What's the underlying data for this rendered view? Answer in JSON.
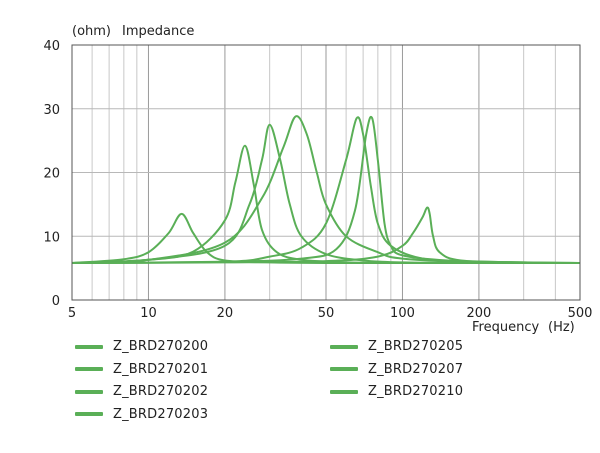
{
  "chart_data": {
    "type": "line",
    "title": "Impedance",
    "y_unit": "(ohm)",
    "xlabel": "Frequency",
    "x_unit": "(Hz)",
    "x_scale": "log",
    "xlim": [
      5,
      500
    ],
    "ylim": [
      0,
      40
    ],
    "x_ticks": [
      5,
      10,
      20,
      50,
      100,
      200,
      500
    ],
    "x_tick_labels": [
      "5",
      "10",
      "20",
      "50",
      "100",
      "200",
      "500"
    ],
    "y_ticks": [
      0,
      10,
      20,
      30,
      40
    ],
    "y_tick_labels": [
      "0",
      "10",
      "20",
      "30",
      "40"
    ],
    "grid": true,
    "legend_position": "bottom",
    "line_color": "#5aaf57",
    "series": [
      {
        "name": "Z_BRD270200",
        "x": [
          5,
          8,
          10,
          12,
          13.5,
          15,
          17,
          20,
          30,
          50,
          100,
          200,
          500
        ],
        "y": [
          5.8,
          6.4,
          7.5,
          10.5,
          13.5,
          10.5,
          7.5,
          6.2,
          5.9,
          5.8,
          5.8,
          5.8,
          5.8
        ]
      },
      {
        "name": "Z_BRD270201",
        "x": [
          5,
          10,
          15,
          20,
          22,
          24,
          26,
          28,
          32,
          40,
          60,
          100,
          200,
          500
        ],
        "y": [
          5.8,
          6.3,
          7.6,
          12.5,
          18.5,
          24.2,
          18,
          11,
          7.5,
          6.3,
          5.9,
          5.8,
          5.8,
          5.8
        ]
      },
      {
        "name": "Z_BRD270202",
        "x": [
          5,
          10,
          20,
          25,
          28,
          30,
          33,
          36,
          40,
          50,
          70,
          100,
          200,
          500
        ],
        "y": [
          5.8,
          6.3,
          8.5,
          15,
          22,
          27.5,
          22,
          15,
          10,
          7.2,
          6.2,
          5.9,
          5.8,
          5.8
        ]
      },
      {
        "name": "Z_BRD270203",
        "x": [
          5,
          10,
          20,
          28,
          34,
          38,
          42,
          46,
          50,
          60,
          80,
          100,
          200,
          500
        ],
        "y": [
          5.8,
          6.3,
          9,
          16,
          24,
          28.8,
          26,
          20,
          15,
          10,
          7.5,
          6.5,
          5.9,
          5.8
        ]
      },
      {
        "name": "Z_BRD270205",
        "x": [
          5,
          20,
          30,
          40,
          50,
          60,
          66,
          70,
          75,
          80,
          90,
          120,
          200,
          500
        ],
        "y": [
          5.8,
          6,
          6.8,
          8.2,
          12,
          22,
          28.5,
          26,
          18,
          12,
          8.5,
          6.5,
          5.9,
          5.8
        ]
      },
      {
        "name": "Z_BRD270207",
        "x": [
          5,
          20,
          40,
          55,
          65,
          72,
          76,
          80,
          85,
          90,
          100,
          150,
          300,
          500
        ],
        "y": [
          5.8,
          6,
          6.5,
          8,
          14,
          26,
          28.5,
          22,
          12,
          8.5,
          7,
          6.2,
          5.9,
          5.8
        ]
      },
      {
        "name": "Z_BRD270210",
        "x": [
          5,
          20,
          50,
          80,
          100,
          110,
          120,
          125,
          128,
          132,
          140,
          170,
          300,
          500
        ],
        "y": [
          5.8,
          5.9,
          6.1,
          6.8,
          8.5,
          10.5,
          13,
          14.5,
          13.5,
          10,
          7.5,
          6.2,
          5.9,
          5.8
        ]
      }
    ]
  },
  "legend": [
    "Z_BRD270200",
    "Z_BRD270201",
    "Z_BRD270202",
    "Z_BRD270203",
    "Z_BRD270205",
    "Z_BRD270207",
    "Z_BRD270210"
  ]
}
